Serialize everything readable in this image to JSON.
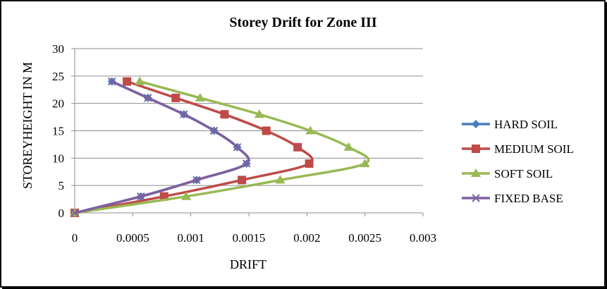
{
  "chart_data": {
    "type": "line",
    "title": "Storey Drift for Zone III",
    "xlabel": "DRIFT",
    "ylabel": "STOREYHEIGHT IN M",
    "xlim": [
      0,
      0.003
    ],
    "ylim": [
      0,
      30
    ],
    "x_ticks": [
      "0",
      "0.0005",
      "0.001",
      "0.0015",
      "0.002",
      "0.0025",
      "0.003"
    ],
    "y_ticks": [
      "0",
      "5",
      "10",
      "15",
      "20",
      "25",
      "30"
    ],
    "grid": "horizontal",
    "legend_position": "right",
    "series": [
      {
        "name": "HARD SOIL",
        "color": "#4a7ebb",
        "marker": "diamond",
        "x": [
          0,
          0.00057,
          0.00105,
          0.00148,
          0.0014,
          0.0012,
          0.00094,
          0.00063,
          0.00032
        ],
        "y": [
          0,
          3,
          6,
          9,
          12,
          15,
          18,
          21,
          24
        ]
      },
      {
        "name": "MEDIUM SOIL",
        "color": "#be4b48",
        "marker": "square",
        "x": [
          0,
          0.00077,
          0.00144,
          0.00202,
          0.00192,
          0.00165,
          0.00129,
          0.00087,
          0.00045
        ],
        "y": [
          0,
          3,
          6,
          9,
          12,
          15,
          18,
          21,
          24
        ]
      },
      {
        "name": "SOFT SOIL",
        "color": "#98b954",
        "marker": "triangle",
        "x": [
          0,
          0.00096,
          0.00177,
          0.0025,
          0.00236,
          0.00203,
          0.00159,
          0.00108,
          0.00056
        ],
        "y": [
          0,
          3,
          6,
          9,
          12,
          15,
          18,
          21,
          24
        ]
      },
      {
        "name": "FIXED BASE",
        "color": "#7d60a0",
        "marker": "x",
        "x": [
          0,
          0.00057,
          0.00105,
          0.00148,
          0.0014,
          0.0012,
          0.00094,
          0.00063,
          0.00032
        ],
        "y": [
          0,
          3,
          6,
          9,
          12,
          15,
          18,
          21,
          24
        ]
      }
    ]
  }
}
